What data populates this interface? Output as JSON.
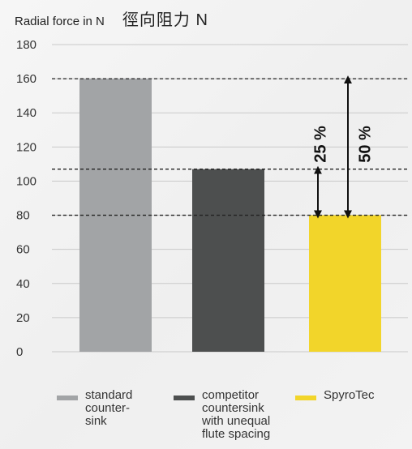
{
  "header": {
    "title_en": "Radial force in N",
    "title_zh": "徑向阻力 N"
  },
  "chart_data": {
    "type": "bar",
    "title": "Radial force in N",
    "ylabel": "徑向阻力 N",
    "categories": [
      "standard counter-sink",
      "competitor countersink with unequal flute spacing",
      "SpyroTec"
    ],
    "values": [
      160,
      107,
      80
    ],
    "colors": [
      "#a2a4a6",
      "#4d4f4f",
      "#f2d52a"
    ],
    "ylim": [
      0,
      180
    ],
    "yticks": [
      0,
      20,
      40,
      60,
      80,
      100,
      120,
      140,
      160,
      180
    ],
    "grid": true,
    "reference_lines": [
      160,
      107,
      80
    ],
    "annotations": [
      {
        "label": "25 %",
        "from": 107,
        "to": 80
      },
      {
        "label": "50 %",
        "from": 160,
        "to": 80
      }
    ],
    "legend": {
      "position": "bottom",
      "entries": [
        {
          "label": "standard\ncounter-\nsink",
          "color": "#a2a4a6"
        },
        {
          "label": "competitor\ncountersink\nwith unequal\nflute spacing",
          "color": "#4d4f4f"
        },
        {
          "label": "SpyroTec",
          "color": "#f2d52a"
        }
      ]
    }
  }
}
